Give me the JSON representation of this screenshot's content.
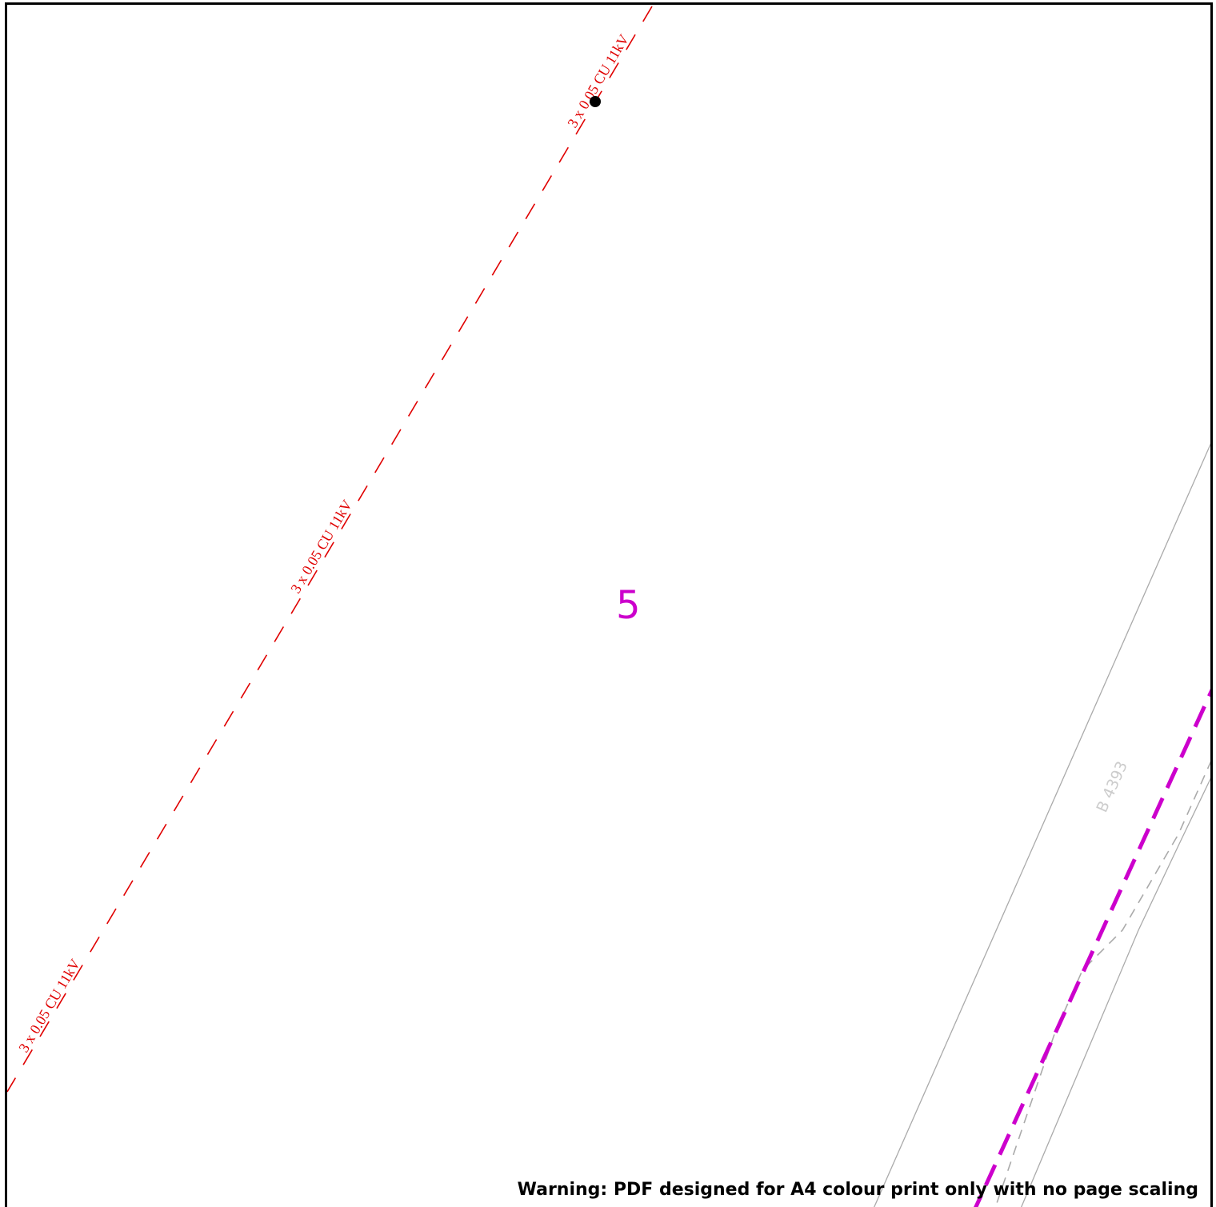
{
  "cable": {
    "label": "3 x 0.05 CU 11kV",
    "color": "#e00000"
  },
  "road": {
    "label": "B 4393",
    "color": "#aaaaaa"
  },
  "sheet": {
    "number": "5",
    "color": "#cc00cc"
  },
  "footer": {
    "warning": "Warning: PDF designed for A4 colour print only with no page scaling"
  },
  "markers": {
    "node_color": "#000000"
  }
}
